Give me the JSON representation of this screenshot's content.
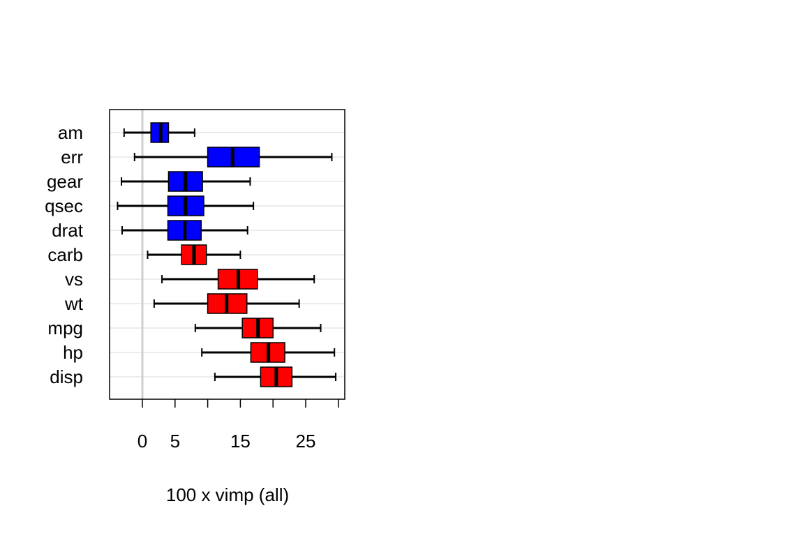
{
  "chart_data": {
    "type": "boxplot",
    "orientation": "horizontal",
    "xlabel": "100 x vimp (all)",
    "ylabel": "",
    "title": "",
    "x_ticks": [
      0,
      5,
      10,
      15,
      20,
      25,
      30
    ],
    "x_tick_labels": [
      "0",
      "5",
      "",
      "15",
      "",
      "25",
      ""
    ],
    "xlim": [
      -5,
      31
    ],
    "grid": "horizontal",
    "reference_line": 0,
    "colors": {
      "blue": "#0000ff",
      "red": "#ff0000"
    },
    "series": [
      {
        "name": "am",
        "color": "blue",
        "min": -2.8,
        "q1": 1.3,
        "median": 2.8,
        "q3": 4.0,
        "max": 8.0
      },
      {
        "name": "err",
        "color": "blue",
        "min": -1.2,
        "q1": 10.0,
        "median": 13.8,
        "q3": 17.9,
        "max": 29.0
      },
      {
        "name": "gear",
        "color": "blue",
        "min": -3.2,
        "q1": 4.0,
        "median": 6.6,
        "q3": 9.2,
        "max": 16.5
      },
      {
        "name": "qsec",
        "color": "blue",
        "min": -3.8,
        "q1": 3.9,
        "median": 6.6,
        "q3": 9.4,
        "max": 17.0
      },
      {
        "name": "drat",
        "color": "blue",
        "min": -3.1,
        "q1": 3.9,
        "median": 6.5,
        "q3": 9.0,
        "max": 16.1
      },
      {
        "name": "carb",
        "color": "red",
        "min": 0.8,
        "q1": 6.0,
        "median": 7.9,
        "q3": 9.8,
        "max": 15.0
      },
      {
        "name": "vs",
        "color": "red",
        "min": 3.0,
        "q1": 11.6,
        "median": 14.7,
        "q3": 17.6,
        "max": 26.3
      },
      {
        "name": "wt",
        "color": "red",
        "min": 1.8,
        "q1": 10.0,
        "median": 12.9,
        "q3": 16.0,
        "max": 24.0
      },
      {
        "name": "mpg",
        "color": "red",
        "min": 8.1,
        "q1": 15.3,
        "median": 17.7,
        "q3": 20.0,
        "max": 27.3
      },
      {
        "name": "hp",
        "color": "red",
        "min": 9.1,
        "q1": 16.6,
        "median": 19.3,
        "q3": 21.8,
        "max": 29.4
      },
      {
        "name": "disp",
        "color": "red",
        "min": 11.1,
        "q1": 18.1,
        "median": 20.5,
        "q3": 22.9,
        "max": 29.6
      }
    ]
  }
}
